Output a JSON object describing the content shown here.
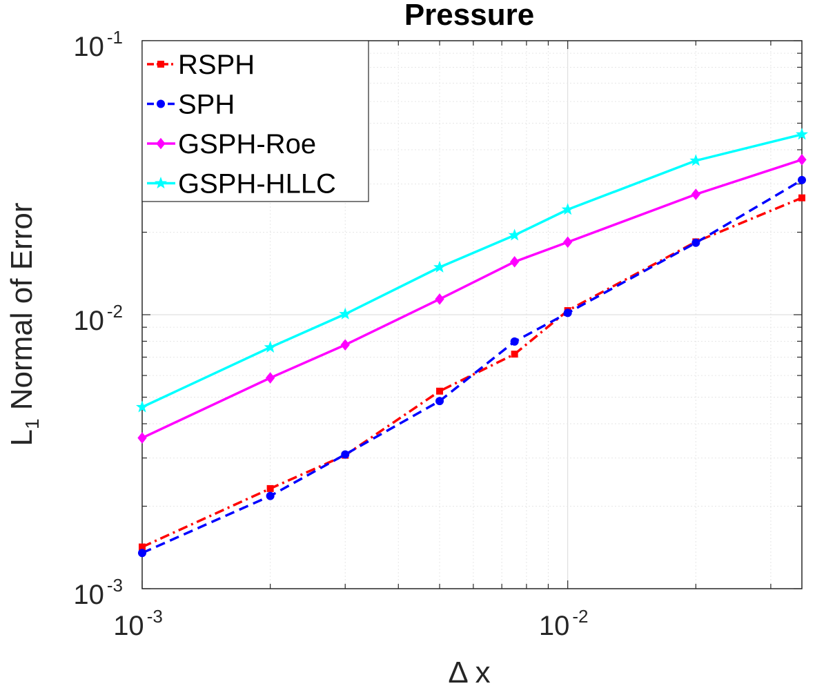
{
  "chart_data": {
    "type": "line",
    "title": "Pressure",
    "xlabel": "Δ x",
    "ylabel": {
      "base": "L",
      "subscript": "1",
      "rest": " Normal of Error"
    },
    "xscale": "log",
    "yscale": "log",
    "xlim": [
      0.001,
      0.0355
    ],
    "ylim": [
      0.001,
      0.1
    ],
    "x": [
      0.001,
      0.002,
      0.003,
      0.005,
      0.0075,
      0.01,
      0.02,
      0.0355
    ],
    "x_ticks": [
      {
        "value": 0.001,
        "base": "10",
        "exp": "-3"
      },
      {
        "value": 0.01,
        "base": "10",
        "exp": "-2"
      }
    ],
    "y_ticks": [
      {
        "value": 0.001,
        "base": "10",
        "exp": "-3"
      },
      {
        "value": 0.01,
        "base": "10",
        "exp": "-2"
      },
      {
        "value": 0.1,
        "base": "10",
        "exp": "-1"
      }
    ],
    "grid": true,
    "legend_position": "top-left",
    "series": [
      {
        "name": "RSPH",
        "color": "#ff0000",
        "dash": "dashdot",
        "marker": "square",
        "values": [
          0.00142,
          0.00232,
          0.00307,
          0.00526,
          0.00718,
          0.01035,
          0.01845,
          0.0267
        ]
      },
      {
        "name": "SPH",
        "color": "#0000ff",
        "dash": "dashed",
        "marker": "circle",
        "values": [
          0.00135,
          0.00218,
          0.00309,
          0.00484,
          0.00798,
          0.01015,
          0.0183,
          0.031
        ]
      },
      {
        "name": "GSPH-Roe",
        "color": "#ff00ff",
        "dash": "solid",
        "marker": "diamond",
        "values": [
          0.00355,
          0.00588,
          0.00776,
          0.0114,
          0.0156,
          0.0184,
          0.0275,
          0.0368
        ]
      },
      {
        "name": "GSPH-HLLC",
        "color": "#00ffff",
        "dash": "solid",
        "marker": "star",
        "values": [
          0.0046,
          0.0076,
          0.01005,
          0.0149,
          0.0195,
          0.0242,
          0.0365,
          0.0455
        ]
      }
    ]
  }
}
